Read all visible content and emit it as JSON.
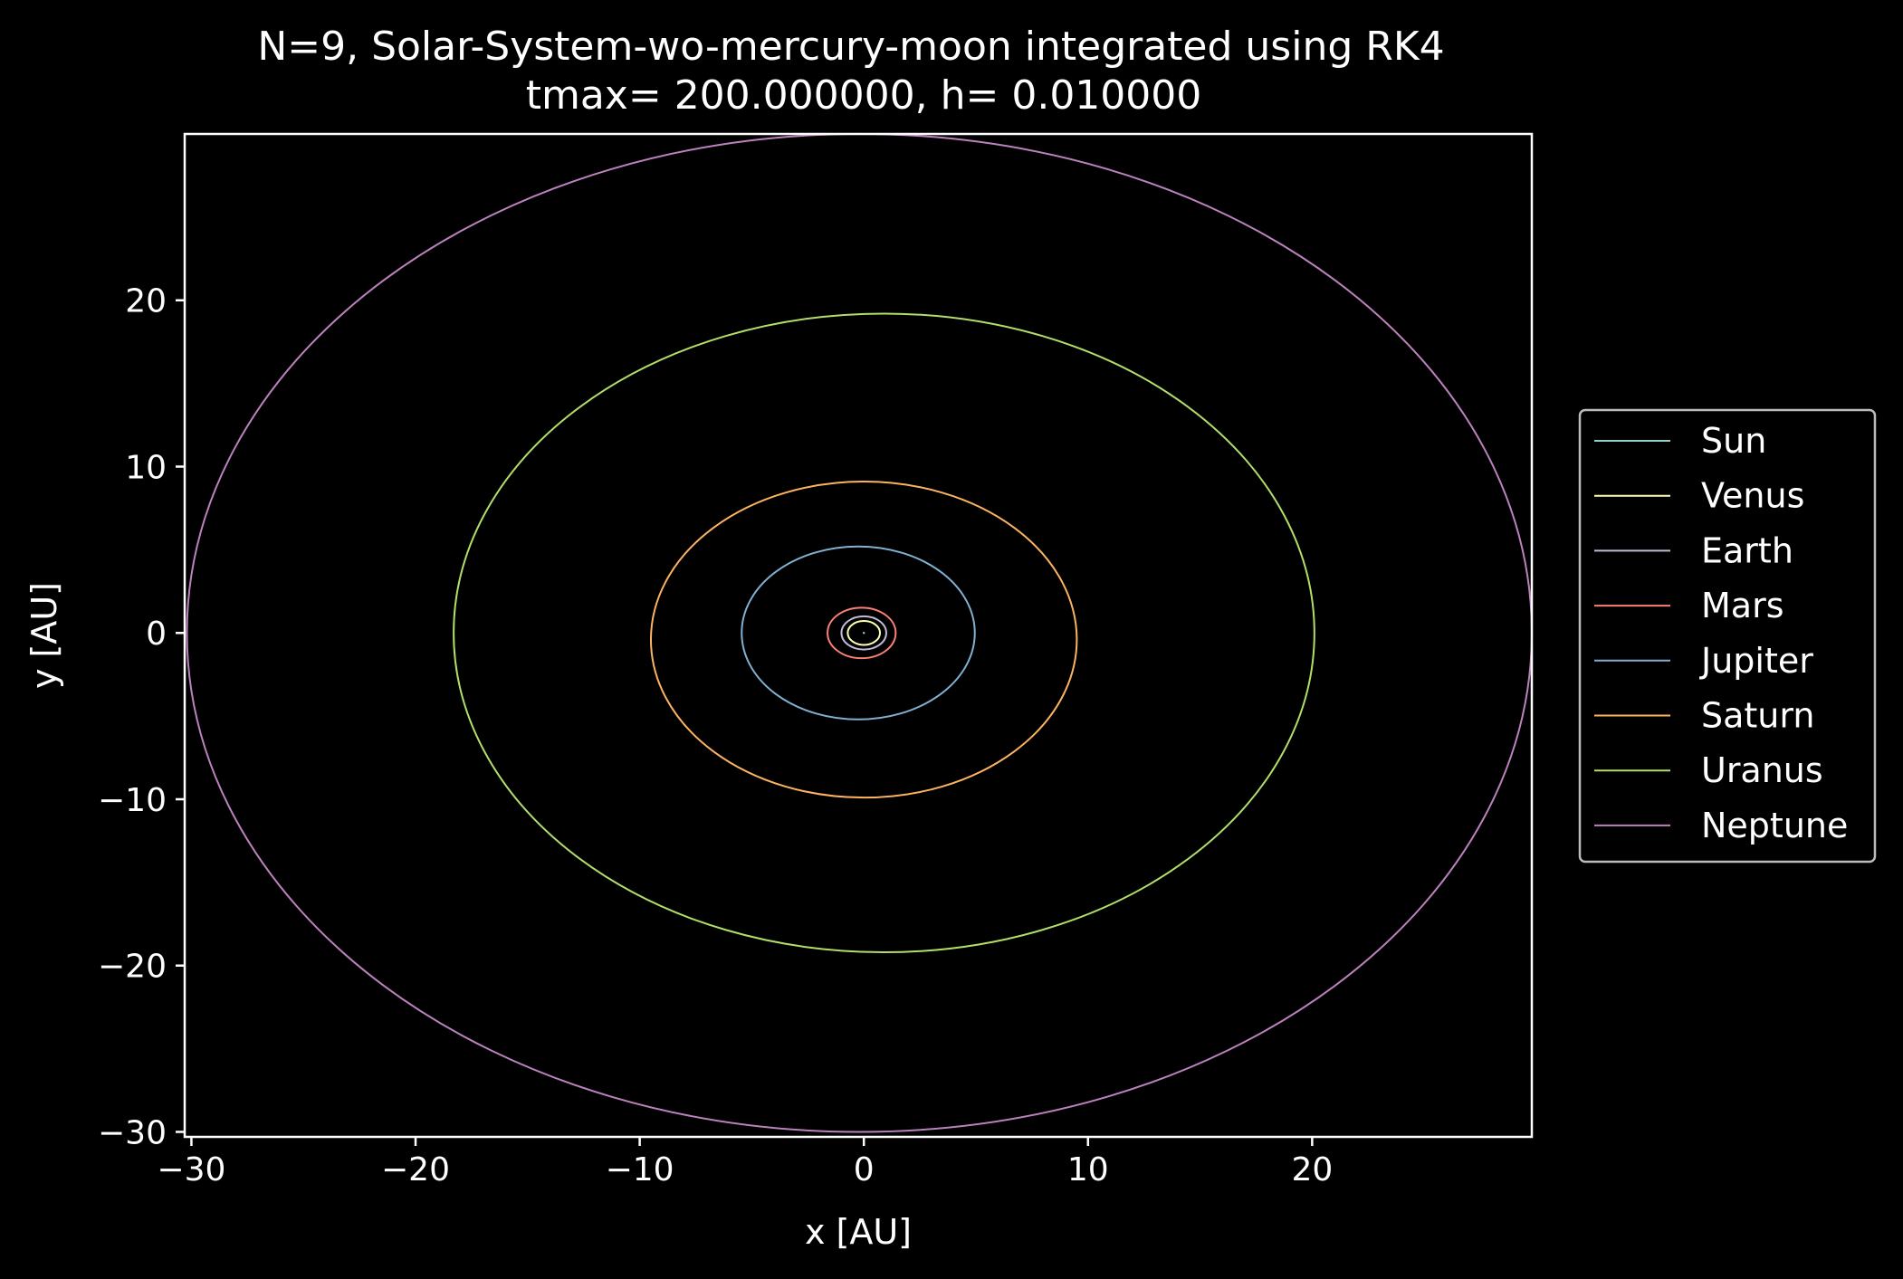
{
  "chart_data": {
    "type": "line",
    "title": "N=9, Solar-System-wo-mercury-moon integrated using RK4",
    "subtitle": "tmax= 200.000000, h= 0.010000",
    "xlabel": "x [AU]",
    "ylabel": "y [AU]",
    "xlim": [
      -30.3,
      29.8
    ],
    "ylim": [
      -30.3,
      30.0
    ],
    "xticks": [
      -30,
      -20,
      -10,
      0,
      10,
      20
    ],
    "yticks": [
      -30,
      -20,
      -10,
      0,
      10,
      20
    ],
    "xtick_labels": [
      "−30",
      "−20",
      "−10",
      "0",
      "10",
      "20"
    ],
    "ytick_labels": [
      "−30",
      "−20",
      "−10",
      "0",
      "10",
      "20"
    ],
    "grid": false,
    "legend_position": "outside-right",
    "background": "#000000",
    "series": [
      {
        "name": "Sun",
        "color": "#8dd3c7",
        "center": [
          0.0,
          0.0
        ],
        "radius_x": 0.0,
        "radius_y": 0.0
      },
      {
        "name": "Venus",
        "color": "#feffb3",
        "center": [
          0.0,
          0.0
        ],
        "radius_x": 0.72,
        "radius_y": 0.72
      },
      {
        "name": "Earth",
        "color": "#bfbbd9",
        "center": [
          0.0,
          0.0
        ],
        "radius_x": 1.0,
        "radius_y": 1.0
      },
      {
        "name": "Mars",
        "color": "#fa8174",
        "center": [
          -0.1,
          0.0
        ],
        "radius_x": 1.52,
        "radius_y": 1.52
      },
      {
        "name": "Jupiter",
        "color": "#81b1d2",
        "center": [
          -0.25,
          0.0
        ],
        "radius_x": 5.2,
        "radius_y": 5.2
      },
      {
        "name": "Saturn",
        "color": "#fdb462",
        "center": [
          0.0,
          -0.4
        ],
        "radius_x": 9.5,
        "radius_y": 9.5
      },
      {
        "name": "Uranus",
        "color": "#b3de69",
        "center": [
          0.9,
          0.0
        ],
        "radius_x": 19.2,
        "radius_y": 19.2
      },
      {
        "name": "Neptune",
        "color": "#bc82bd",
        "center": [
          -0.2,
          0.0
        ],
        "radius_x": 30.0,
        "radius_y": 30.0
      }
    ]
  }
}
